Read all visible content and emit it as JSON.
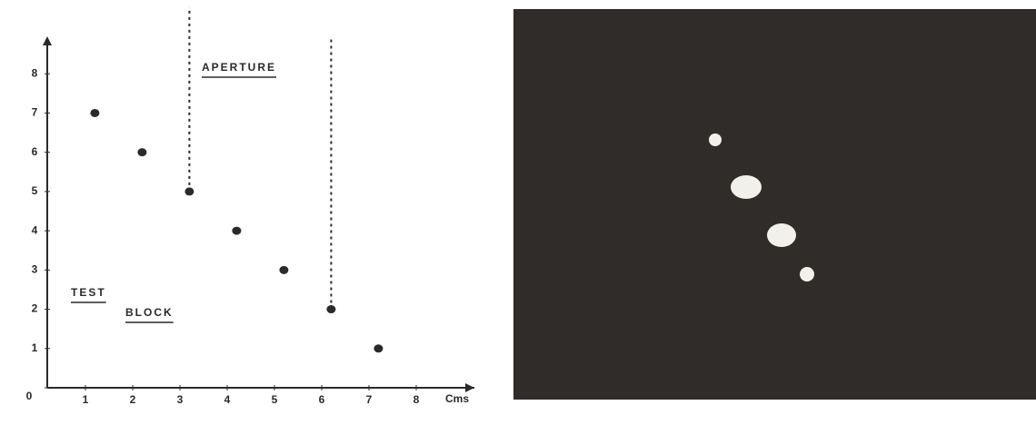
{
  "chart_data": {
    "type": "scatter",
    "x": [
      1.2,
      2.2,
      3.2,
      4.2,
      5.2,
      6.2,
      7.2
    ],
    "values": [
      7,
      6,
      5,
      4,
      3,
      2,
      1
    ],
    "color": "#2a2a2a",
    "xlim": [
      0,
      9
    ],
    "xticks": [
      1,
      2,
      3,
      4,
      5,
      6,
      7,
      8
    ],
    "ylim": [
      0,
      9
    ],
    "yticks": [
      0,
      1,
      2,
      3,
      4,
      5,
      6,
      7,
      8
    ],
    "x_label": "Cms",
    "annotations": [
      "APERTURE",
      "TEST",
      "BLOCK"
    ],
    "aperture_lines": [
      {
        "x": 3.2,
        "y_from": 5,
        "y_to": 9.7
      },
      {
        "x": 6.2,
        "y_from": 2,
        "y_to": 8.9
      }
    ],
    "grid": false
  }
}
